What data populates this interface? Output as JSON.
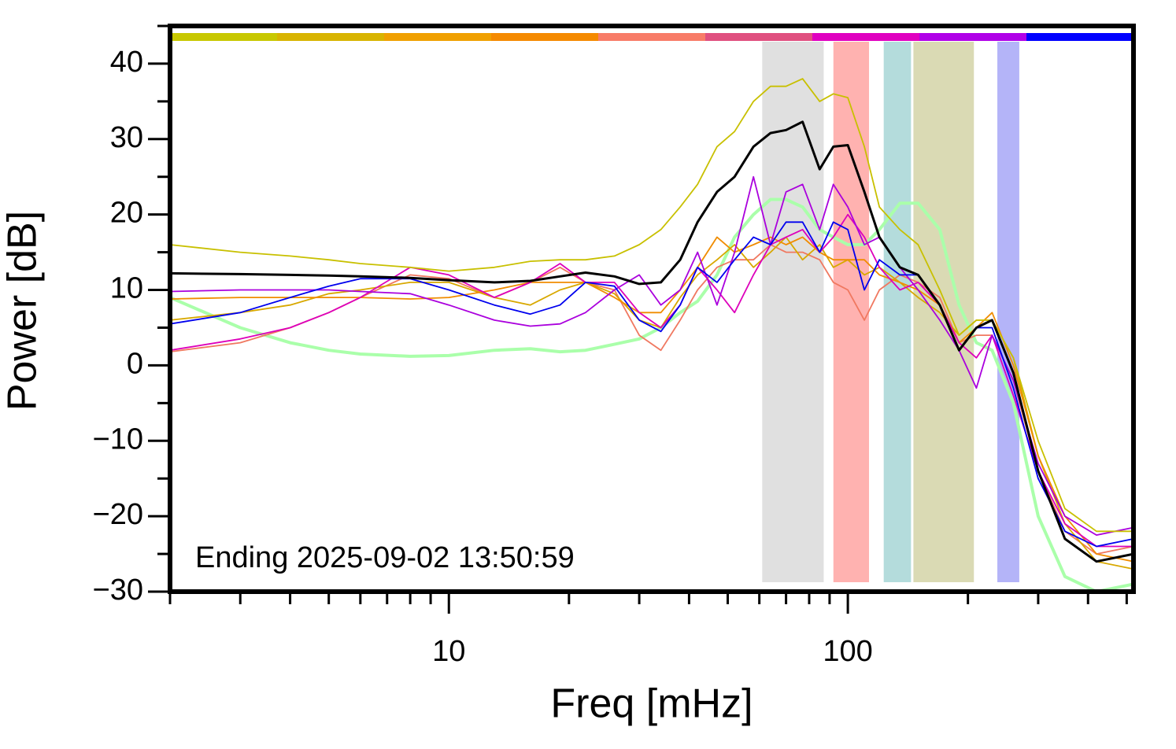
{
  "chart_data": {
    "type": "line",
    "x_label": "Freq [mHz]",
    "y_label": "Power [dB]",
    "annotation": "Ending 2025-09-02 13:50:59",
    "x_log": true,
    "xlim": [
      2,
      520
    ],
    "ylim": [
      -30,
      45
    ],
    "xticks": [
      10,
      100
    ],
    "xminor_ticks": [
      2,
      3,
      4,
      5,
      6,
      7,
      8,
      9,
      20,
      30,
      40,
      50,
      60,
      70,
      80,
      90,
      200,
      300,
      400,
      500
    ],
    "yticks": [
      {
        "value": -30,
        "label": "−30"
      },
      {
        "value": -20,
        "label": "−20"
      },
      {
        "value": -10,
        "label": "−10"
      },
      0,
      10,
      20,
      30,
      40
    ],
    "yminor_ticks": [
      -25,
      -15,
      -5,
      5,
      15,
      25,
      35,
      45
    ],
    "color_strip": [
      "#c8c800",
      "#d8b400",
      "#f0a000",
      "#f58a00",
      "#f87c68",
      "#e05080",
      "#e000c0",
      "#b000e8",
      "#0000ff"
    ],
    "bands": [
      {
        "x": [
          61,
          87
        ],
        "color": "#e0e0e0"
      },
      {
        "x": [
          92,
          113
        ],
        "color": "#ffb2b0"
      },
      {
        "x": [
          123,
          144
        ],
        "color": "#b4dcdc"
      },
      {
        "x": [
          146,
          207
        ],
        "color": "#dadab4"
      },
      {
        "x": [
          237,
          269
        ],
        "color": "#b4b4f8"
      }
    ],
    "x": [
      2,
      3,
      4,
      5,
      6,
      8,
      10,
      13,
      16,
      19,
      22,
      26,
      30,
      34,
      38,
      42,
      47,
      52,
      58,
      64,
      70,
      77,
      85,
      92,
      100,
      110,
      120,
      135,
      150,
      170,
      190,
      210,
      230,
      260,
      300,
      350,
      420,
      520
    ],
    "series": [
      {
        "color": "#aaffaa",
        "width": 4,
        "values": [
          9,
          5,
          3,
          2,
          1.5,
          1.2,
          1.3,
          2,
          2.2,
          1.8,
          2,
          2.8,
          3.5,
          5,
          7,
          8.5,
          12,
          17,
          20,
          22,
          22,
          21,
          18,
          17,
          16,
          16,
          18,
          21.5,
          21.5,
          18,
          8,
          3,
          2,
          -5,
          -20,
          -28,
          -30,
          -29
        ]
      },
      {
        "color": "#f07860",
        "width": 1.8,
        "values": [
          1.8,
          3,
          5,
          7,
          9,
          12,
          11.5,
          9,
          11,
          13,
          11,
          10,
          4,
          2,
          6,
          10,
          13,
          14,
          14,
          16,
          15,
          15,
          14,
          11,
          10,
          6,
          10,
          12,
          11,
          9,
          3,
          4,
          4,
          -2,
          -14,
          -22,
          -25,
          -24
        ]
      },
      {
        "color": "#d8a800",
        "width": 1.8,
        "values": [
          6,
          7,
          8,
          9.5,
          10,
          11,
          11,
          9,
          8,
          10,
          11,
          9.5,
          6,
          5,
          9,
          12,
          14,
          16,
          13,
          15,
          17,
          14,
          16,
          13,
          14,
          12,
          13,
          11,
          9,
          7,
          4,
          6,
          6,
          1,
          -12,
          -21,
          -26,
          -27
        ]
      },
      {
        "color": "#f08c00",
        "width": 1.8,
        "values": [
          8.8,
          9,
          9,
          9,
          9,
          8.8,
          9,
          10,
          11,
          11,
          11,
          9,
          7,
          7,
          10,
          13,
          17,
          15,
          16,
          17,
          16,
          17,
          15,
          14,
          14,
          14,
          12,
          11,
          10,
          8,
          3,
          5,
          7,
          0,
          -12,
          -20,
          -25,
          -26
        ]
      },
      {
        "color": "#dd00bb",
        "width": 1.8,
        "values": [
          2,
          3.5,
          5,
          7,
          9,
          13,
          12,
          9,
          11,
          13.5,
          11,
          11,
          7,
          5,
          8,
          13,
          10,
          7,
          12,
          16,
          17,
          18,
          15,
          17,
          20,
          17,
          13,
          10,
          11,
          8,
          3,
          1,
          4,
          -4,
          -14,
          -21,
          -24,
          -24
        ]
      },
      {
        "color": "#aa00dd",
        "width": 1.8,
        "values": [
          9.8,
          10,
          10,
          10,
          9.8,
          9.5,
          8,
          6,
          5.2,
          5.5,
          7,
          10,
          12,
          8,
          10,
          15,
          8,
          15,
          25,
          16,
          23,
          24,
          18,
          24,
          21,
          16,
          17,
          13,
          10,
          6,
          2,
          -3,
          4,
          -2,
          -13,
          -20,
          -22.5,
          -21.5
        ]
      },
      {
        "color": "#0000ee",
        "width": 1.8,
        "values": [
          5.5,
          7,
          9,
          10.5,
          11.5,
          11.5,
          10,
          8,
          6.8,
          8,
          11,
          10.5,
          6,
          4.5,
          8,
          13,
          11,
          14,
          17,
          16,
          19,
          19,
          15,
          19,
          18,
          10,
          14,
          12,
          12,
          8,
          2,
          5,
          5,
          -3,
          -15,
          -22,
          -24,
          -23
        ]
      },
      {
        "color": "#c8c000",
        "width": 1.8,
        "values": [
          16,
          15,
          14.5,
          14,
          13.5,
          13,
          12.5,
          13,
          13.8,
          14,
          14,
          14.5,
          16,
          18,
          21,
          24,
          29,
          31,
          35,
          37,
          37,
          38,
          35,
          36,
          35.5,
          29,
          21,
          18,
          16,
          10,
          4,
          6,
          6,
          1,
          -10,
          -19,
          -22,
          -22
        ]
      },
      {
        "color": "#000000",
        "width": 3,
        "values": [
          12.2,
          12.1,
          12,
          11.9,
          11.8,
          11.6,
          11.3,
          11,
          11.2,
          11.8,
          12.3,
          11.8,
          10.8,
          11,
          14,
          19,
          23,
          25,
          29,
          30.8,
          31.2,
          32.3,
          26,
          29,
          29.2,
          23,
          17,
          13,
          12,
          8,
          2,
          5,
          6,
          -1,
          -14,
          -23,
          -26,
          -25
        ]
      }
    ]
  }
}
